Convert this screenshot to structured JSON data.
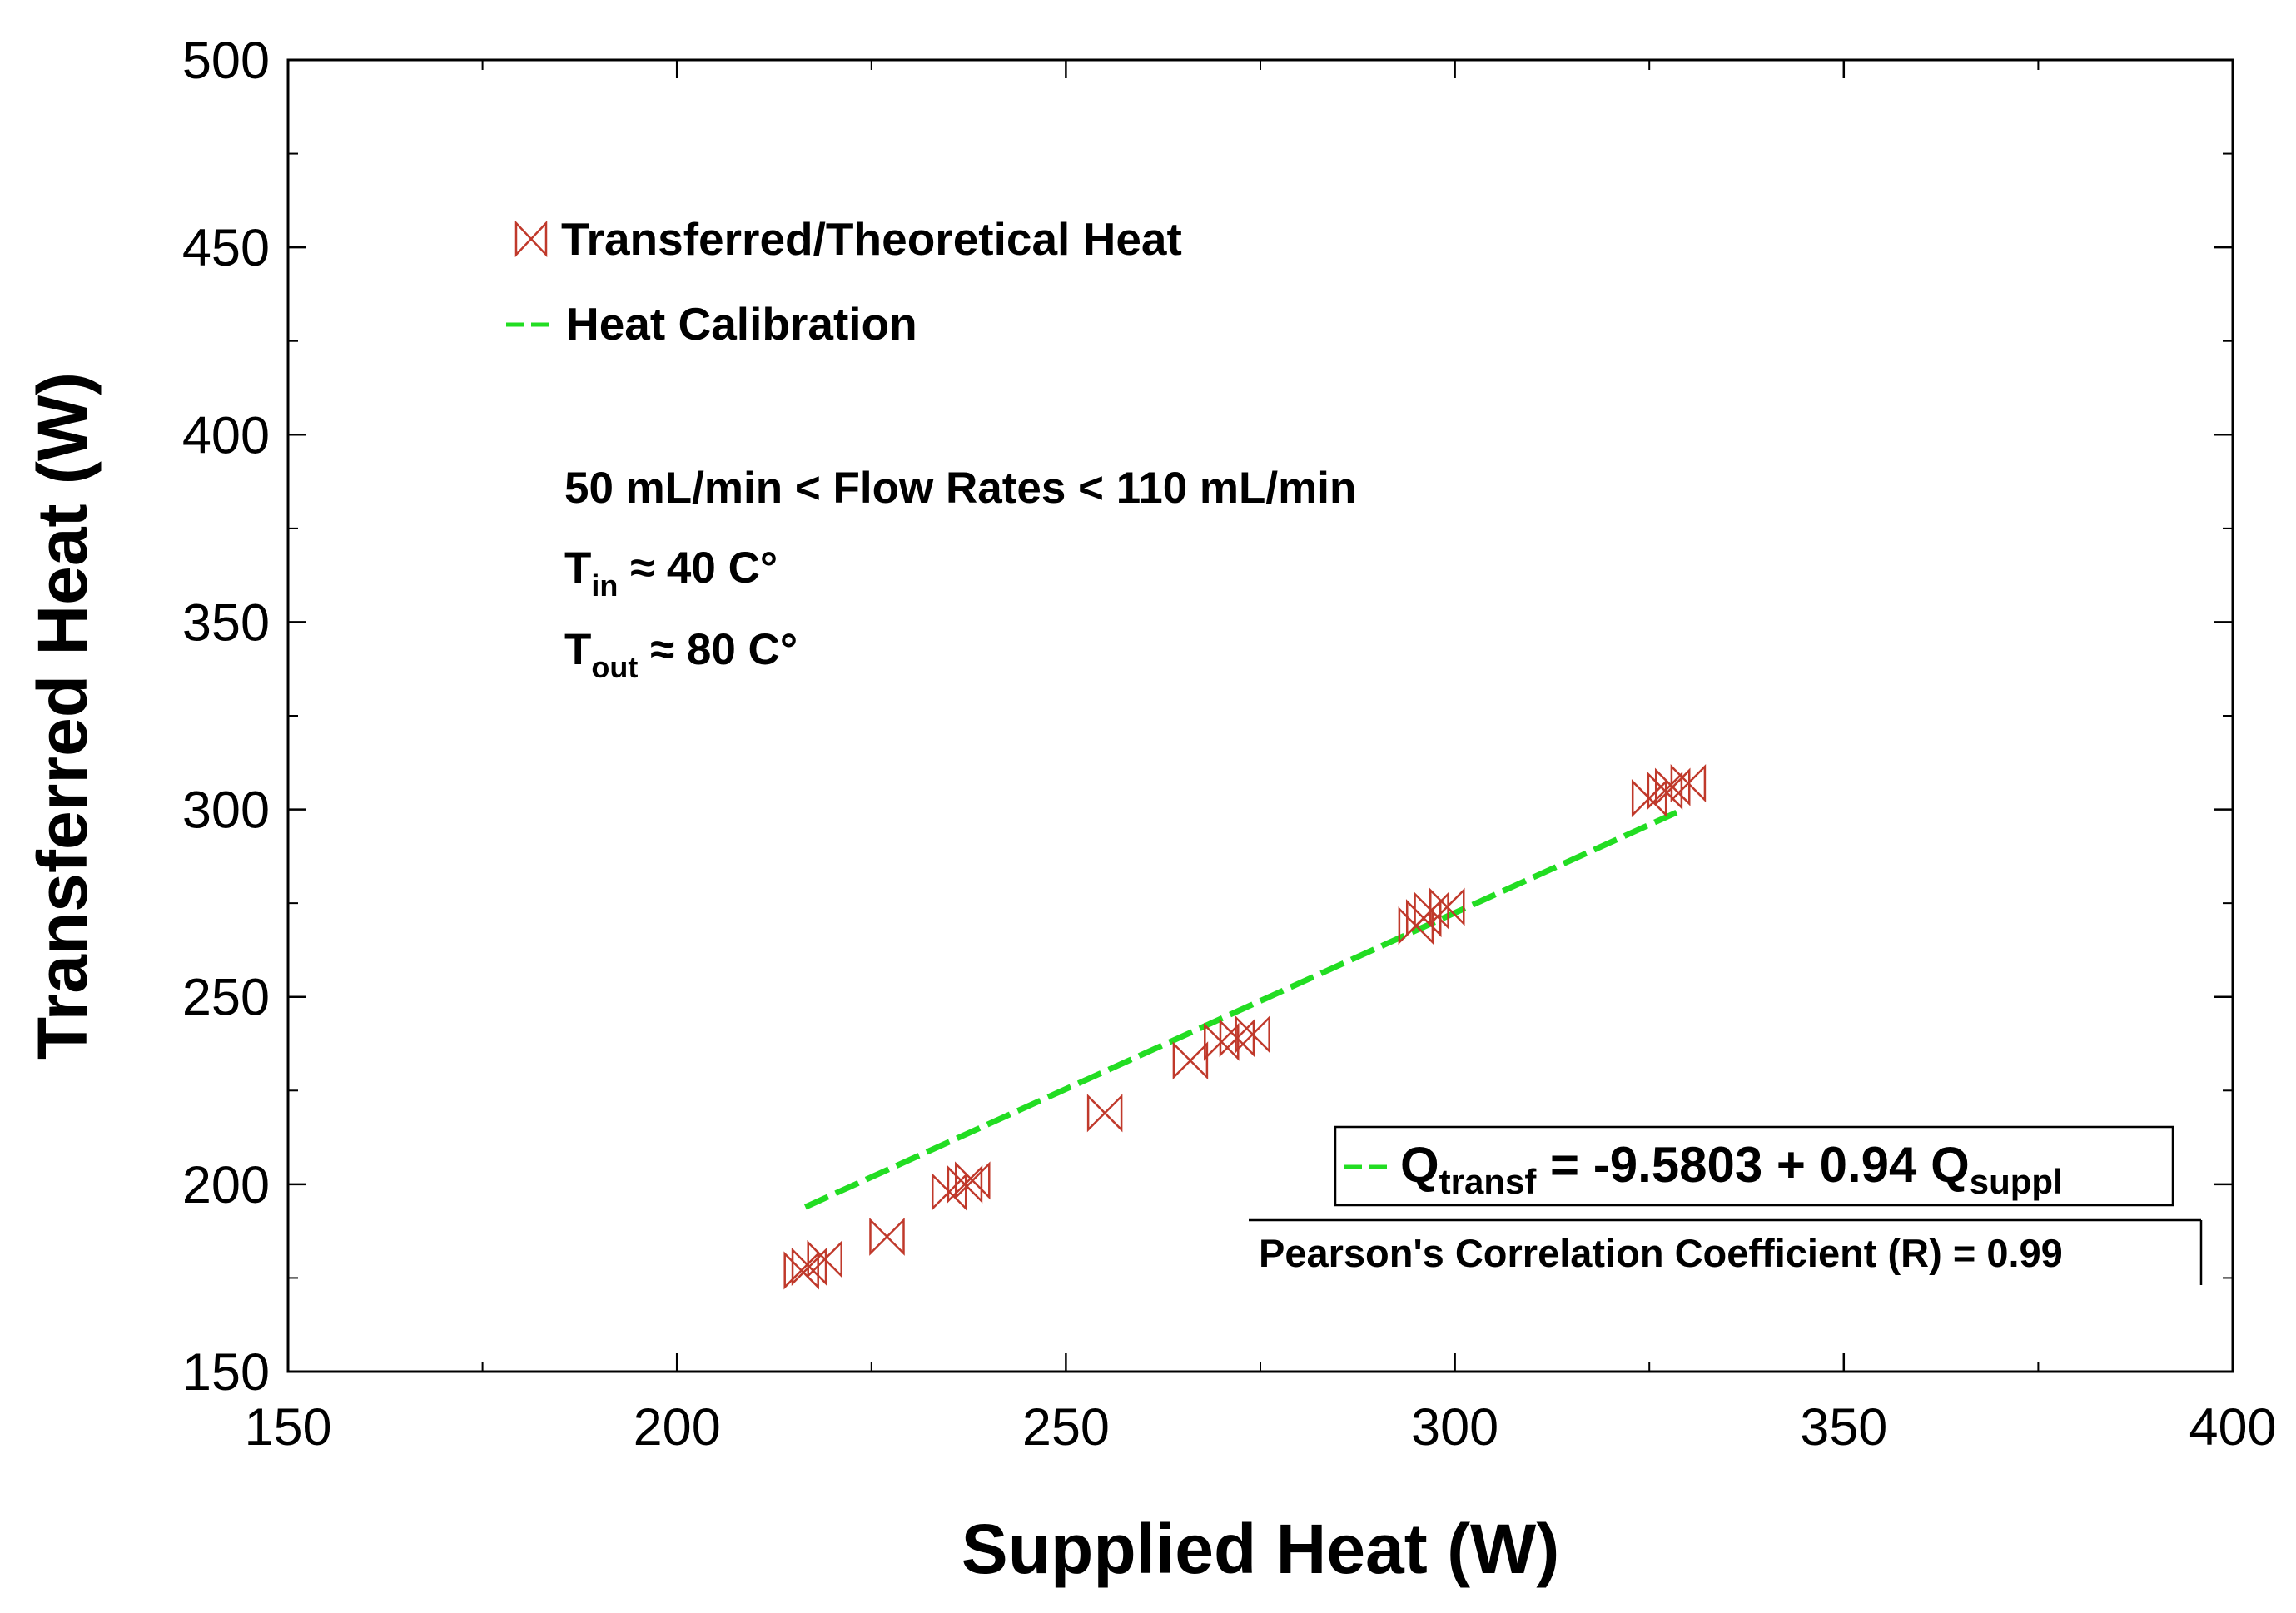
{
  "chart_data": {
    "type": "scatter",
    "xlabel": "Supplied Heat (W)",
    "ylabel": "Transferred Heat (W)",
    "xlim": [
      150,
      400
    ],
    "ylim": [
      150,
      500
    ],
    "xticks": [
      "150",
      "200",
      "250",
      "300",
      "350",
      "400"
    ],
    "yticks": [
      "150",
      "200",
      "250",
      "300",
      "350",
      "400",
      "450",
      "500"
    ],
    "grid": false,
    "legend_position": "top-left",
    "series": [
      {
        "name": "Transferred/Theoretical Heat",
        "type": "scatter",
        "marker": "bowtie",
        "color": "#c0392b",
        "x": [
          216,
          217,
          219,
          227,
          235,
          237,
          238,
          255,
          266,
          270,
          272,
          274,
          295,
          296,
          297,
          299,
          325,
          327,
          328,
          330
        ],
        "y": [
          177,
          178,
          180,
          186,
          198,
          200,
          201,
          219,
          233,
          238,
          239,
          240,
          269,
          271,
          273,
          274,
          303,
          305,
          306,
          307
        ]
      },
      {
        "name": "Heat Calibration",
        "type": "line",
        "style": "dashed",
        "color": "#22dd22",
        "intercept": -9.5803,
        "slope": 0.94,
        "x": [
          216.5,
          328.5
        ]
      }
    ],
    "annotations": {
      "flow_line": "50 mL/min < Flow Rates < 110 mL/min",
      "tin_main": "T",
      "tin_sub": "in",
      "tin_rest": " ≈ 40 C°",
      "tout_main": "T",
      "tout_sub": "out",
      "tout_rest": " ≈ 80 C°",
      "equation": {
        "q": "Q",
        "q_sub": "transf",
        "middle": " = -9.5803 + 0.94 Q",
        "end_sub": "suppl"
      },
      "pearson": "Pearson's Correlation Coefficient (R) = 0.99"
    }
  }
}
